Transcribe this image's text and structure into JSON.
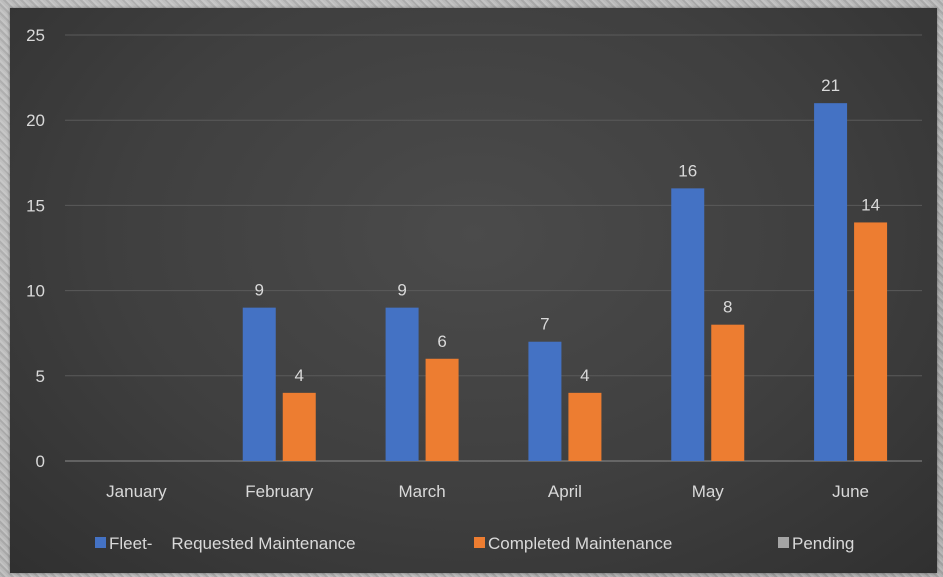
{
  "chart_data": {
    "type": "bar",
    "categories": [
      "January",
      "February",
      "March",
      "April",
      "May",
      "June"
    ],
    "series": [
      {
        "name": "Fleet-    Requested Maintenance",
        "color": "#4472c4",
        "values": [
          null,
          9,
          9,
          7,
          16,
          21
        ]
      },
      {
        "name": "Completed Maintenance",
        "color": "#ed7d31",
        "values": [
          null,
          4,
          6,
          4,
          8,
          14
        ]
      },
      {
        "name": "Pending",
        "color": "#a5a5a5",
        "values": [
          null,
          null,
          null,
          null,
          null,
          null
        ]
      }
    ],
    "yticks": [
      "0",
      "5",
      "10",
      "15",
      "20",
      "25"
    ],
    "ylim": [
      0,
      25
    ],
    "grid": true,
    "legend": "bottom",
    "data_labels": true,
    "background": "#404040",
    "text_color": "#d9d9d9"
  }
}
